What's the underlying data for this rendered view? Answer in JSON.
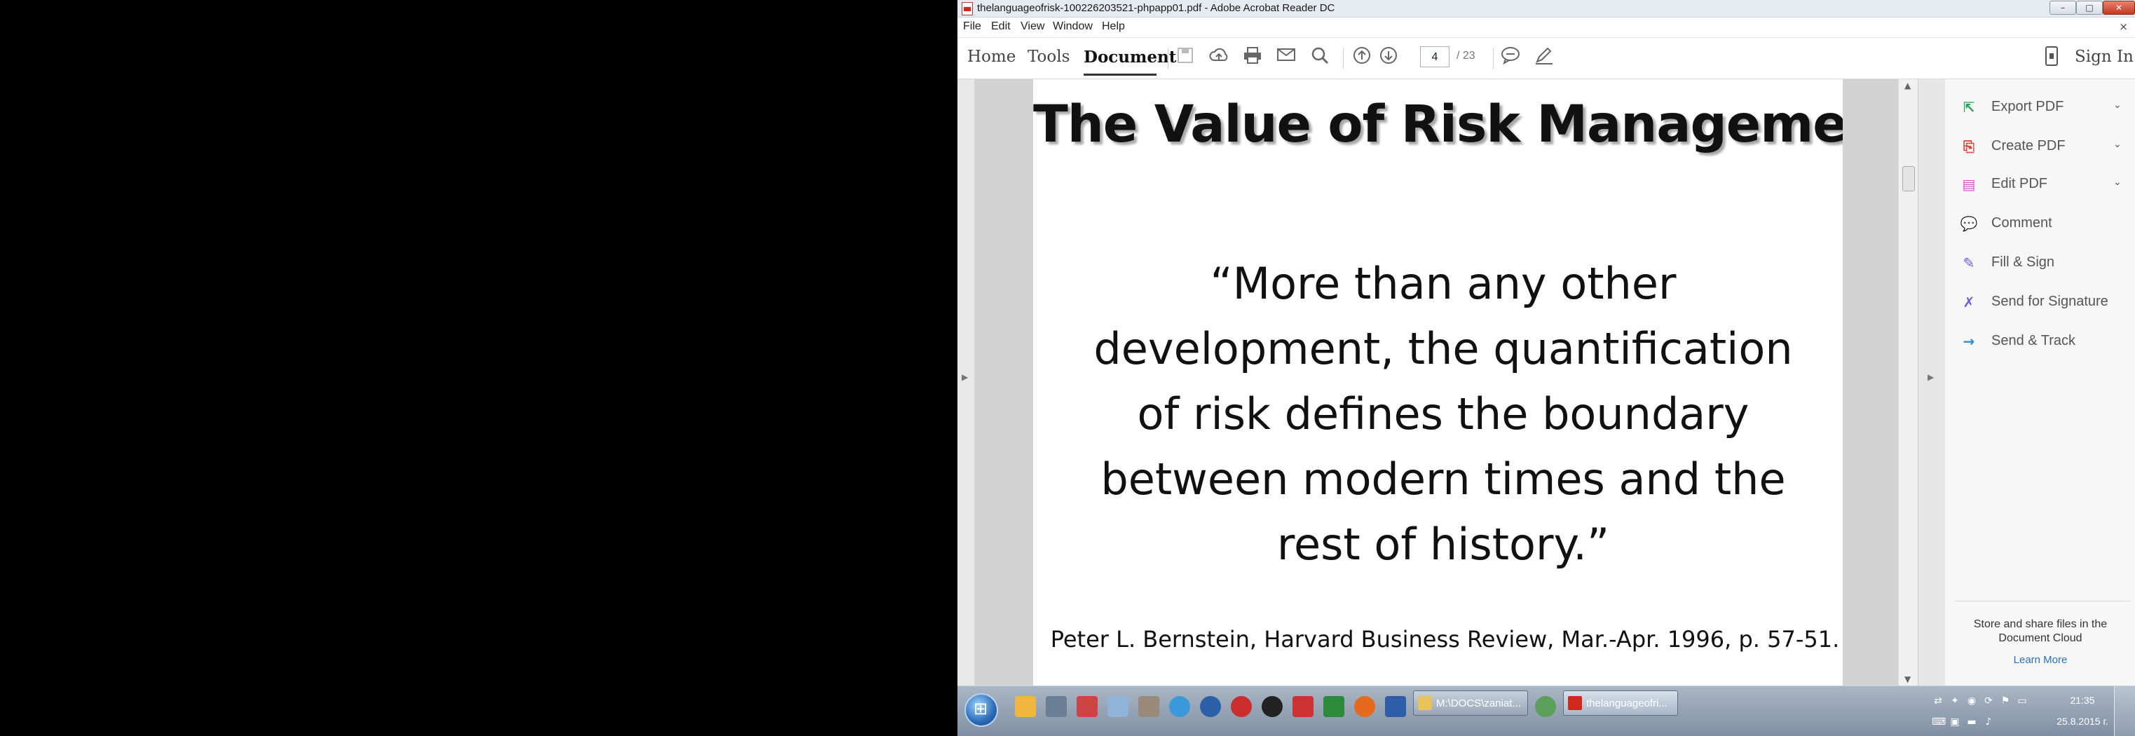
{
  "window": {
    "title": "thelanguageofrisk-100226203521-phpapp01.pdf - Adobe Acrobat Reader DC",
    "controls": {
      "minimize": "–",
      "maximize": "□",
      "close": "✕"
    }
  },
  "menu": {
    "items": [
      "File",
      "Edit",
      "View",
      "Window",
      "Help"
    ],
    "close_doc": "×"
  },
  "toolbar": {
    "tabs": [
      "Home",
      "Tools",
      "Document"
    ],
    "active_tab": "Document",
    "icons": [
      "save-icon",
      "upload-icon",
      "print-icon",
      "email-icon",
      "search-icon",
      "previous-page-icon",
      "next-page-icon",
      "comment-icon",
      "pen-icon"
    ],
    "page_current": "4",
    "page_total": "/ 23",
    "sign_in": "Sign In"
  },
  "document": {
    "title": "The Value of Risk Management",
    "quote": "“More than any other development, the quantification of risk defines the boundary between modern times and the rest of history.”",
    "citation": "Peter L. Bernstein, Harvard Business Review, Mar.-Apr. 1996, p. 57-51."
  },
  "tools_pane": {
    "items": [
      {
        "label": "Export PDF",
        "icon": "export-pdf-icon",
        "color": "#2e9e5b",
        "expandable": true
      },
      {
        "label": "Create PDF",
        "icon": "create-pdf-icon",
        "color": "#d9423a",
        "expandable": true
      },
      {
        "label": "Edit PDF",
        "icon": "edit-pdf-icon",
        "color": "#d94ec7",
        "expandable": true
      },
      {
        "label": "Comment",
        "icon": "comment-icon",
        "color": "#e6b53a",
        "expandable": false
      },
      {
        "label": "Fill & Sign",
        "icon": "fill-sign-icon",
        "color": "#6c5bd8",
        "expandable": false
      },
      {
        "label": "Send for Signature",
        "icon": "send-signature-icon",
        "color": "#6c5bd8",
        "expandable": false
      },
      {
        "label": "Send & Track",
        "icon": "send-track-icon",
        "color": "#2a8fd6",
        "expandable": false
      }
    ],
    "cloud_text": "Store and share files in the Document Cloud",
    "learn_more": "Learn More"
  },
  "taskbar": {
    "task_buttons": [
      "M:\\DOCS\\zaniat...",
      "thelanguageofri..."
    ],
    "clock_time": "21:35",
    "clock_date": "25.8.2015 г."
  }
}
